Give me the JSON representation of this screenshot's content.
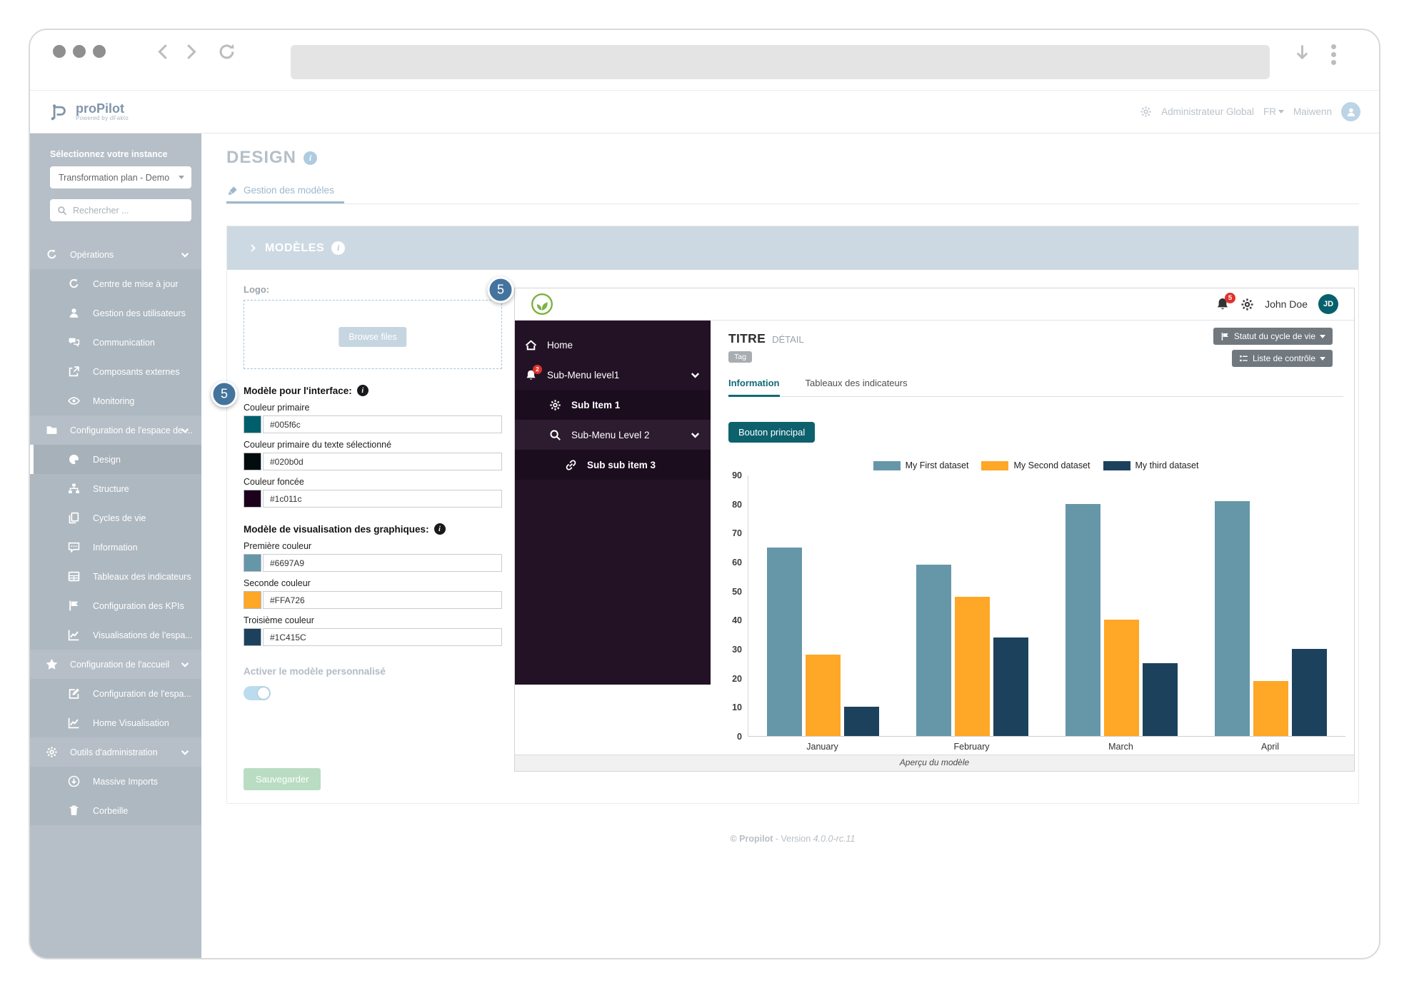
{
  "header": {
    "logo_text": "proPilot",
    "logo_subtitle": "Powered by dFakto",
    "role": "Administrateur Global",
    "lang": "FR",
    "user": "Maiwenn"
  },
  "sidebar": {
    "instance_label": "Sélectionnez votre instance",
    "instance_value": "Transformation plan - Demo",
    "search_placeholder": "Rechercher ...",
    "items": [
      {
        "type": "section",
        "icon": "refresh-icon",
        "label": "Opérations",
        "chevron": true
      },
      {
        "type": "sub",
        "icon": "refresh-icon",
        "label": "Centre de mise à jour"
      },
      {
        "type": "sub",
        "icon": "user-icon",
        "label": "Gestion des utilisateurs"
      },
      {
        "type": "sub",
        "icon": "comments-icon",
        "label": "Communication"
      },
      {
        "type": "sub",
        "icon": "external-icon",
        "label": "Composants externes"
      },
      {
        "type": "sub",
        "icon": "eye-icon",
        "label": "Monitoring"
      },
      {
        "type": "section",
        "icon": "folder-icon",
        "label": "Configuration de l'espace de ...",
        "chevron": true
      },
      {
        "type": "sub",
        "icon": "palette-icon",
        "label": "Design",
        "active": true
      },
      {
        "type": "sub",
        "icon": "sitemap-icon",
        "label": "Structure"
      },
      {
        "type": "sub",
        "icon": "copy-icon",
        "label": "Cycles de vie"
      },
      {
        "type": "sub",
        "icon": "comment-icon",
        "label": "Information"
      },
      {
        "type": "sub",
        "icon": "table-icon",
        "label": "Tableaux des indicateurs"
      },
      {
        "type": "sub",
        "icon": "flag-icon",
        "label": "Configuration des KPIs"
      },
      {
        "type": "sub",
        "icon": "chart-icon",
        "label": "Visualisations de l'espa..."
      },
      {
        "type": "section",
        "icon": "star-icon",
        "label": "Configuration de l'accueil",
        "chevron": true
      },
      {
        "type": "sub",
        "icon": "edit-icon",
        "label": "Configuration de l'espa..."
      },
      {
        "type": "sub",
        "icon": "chart-icon",
        "label": "Home Visualisation"
      },
      {
        "type": "section",
        "icon": "gear-icon",
        "label": "Outils d'administration",
        "chevron": true
      },
      {
        "type": "sub",
        "icon": "download-circle-icon",
        "label": "Massive Imports"
      },
      {
        "type": "sub",
        "icon": "trash-icon",
        "label": "Corbeille"
      }
    ]
  },
  "main": {
    "title": "DESIGN",
    "tab": "Gestion des modèles",
    "panel_title": "MODÈLES"
  },
  "form": {
    "logo_label": "Logo:",
    "browse_label": "Browse files",
    "interface_title": "Modèle pour l'interface:",
    "interface_fields": [
      {
        "label": "Couleur primaire",
        "value": "#005f6c",
        "swatch": "#005f6c"
      },
      {
        "label": "Couleur primaire du texte sélectionné",
        "value": "#020b0d",
        "swatch": "#020b0d"
      },
      {
        "label": "Couleur foncée",
        "value": "#1c011c",
        "swatch": "#1c011c"
      }
    ],
    "charts_title": "Modèle de visualisation des graphiques:",
    "chart_fields": [
      {
        "label": "Première couleur",
        "value": "#6697A9",
        "swatch": "#6697A9"
      },
      {
        "label": "Seconde couleur",
        "value": "#FFA726",
        "swatch": "#FFA726"
      },
      {
        "label": "Troisième couleur",
        "value": "#1C415C",
        "swatch": "#1C415C"
      }
    ],
    "toggle_label": "Activer le modèle personnalisé",
    "save_label": "Sauvegarder"
  },
  "preview": {
    "menu": [
      {
        "label": "Home",
        "icon": "home-icon",
        "indent": 0
      },
      {
        "label": "Sub-Menu level1",
        "icon": "bell-icon",
        "badge": "2",
        "indent": 0,
        "chevron": true
      },
      {
        "label": "Sub Item 1",
        "icon": "gear-icon",
        "indent": 1,
        "bold": true,
        "shade": "dark"
      },
      {
        "label": "Sub-Menu Level 2",
        "icon": "search-icon",
        "indent": 1,
        "chevron": true,
        "shade": "light"
      },
      {
        "label": "Sub sub item 3",
        "icon": "link-icon",
        "indent": 2,
        "bold": true,
        "shade": "dark"
      }
    ],
    "bell_count": "5",
    "user_name": "John Doe",
    "user_initials": "JD",
    "title": "TITRE",
    "subtitle": "DÉTAIL",
    "tag": "Tag",
    "status_button": "Statut du cycle de vie",
    "checklist_button": "Liste de contrôle",
    "tabs": [
      "Information",
      "Tableaux des indicateurs"
    ],
    "primary_button": "Bouton principal",
    "caption": "Aperçu du modèle"
  },
  "chart_data": {
    "type": "bar",
    "categories": [
      "January",
      "February",
      "March",
      "April"
    ],
    "series": [
      {
        "name": "My First dataset",
        "color": "#6697A9",
        "values": [
          65,
          59,
          80,
          81
        ]
      },
      {
        "name": "My Second dataset",
        "color": "#FFA726",
        "values": [
          28,
          48,
          40,
          19
        ]
      },
      {
        "name": "My third dataset",
        "color": "#1C415C",
        "values": [
          10,
          34,
          25,
          30
        ]
      }
    ],
    "ylim": [
      0,
      90
    ],
    "ytick_step": 10,
    "legend_position": "top",
    "grid": false
  },
  "annotations": {
    "step": "5"
  },
  "footer": {
    "copyright": "© Propilot",
    "version_text": "- Version",
    "version": "4.0.0-rc.11"
  },
  "colors": {
    "accent_teal": "#005f6c",
    "panel_header": "#cdd9e2",
    "sidebar_gray": "#b6bfc7",
    "annotation_blue": "#44749e",
    "save_green": "#b9dcc3",
    "alert_red": "#e0312d",
    "preview_dark": "#231226",
    "logo_green": "#7cb342"
  }
}
